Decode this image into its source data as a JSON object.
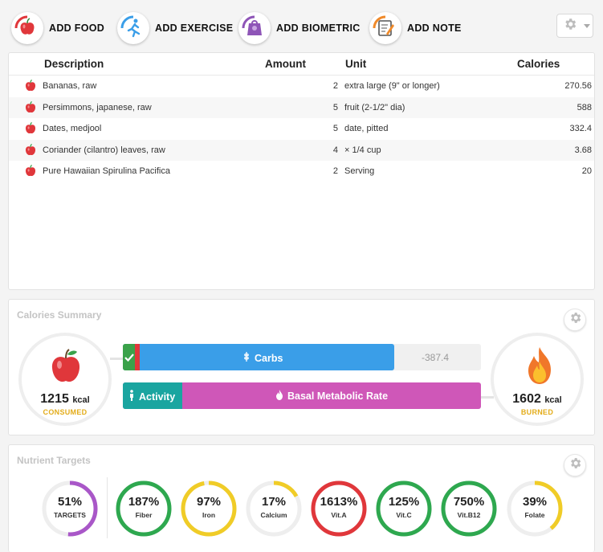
{
  "toolbar": {
    "add_food": "ADD FOOD",
    "add_exercise": "ADD EXERCISE",
    "add_biometric": "ADD BIOMETRIC",
    "add_note": "ADD NOTE"
  },
  "food_table": {
    "headers": {
      "description": "Description",
      "amount": "Amount",
      "unit": "Unit",
      "calories": "Calories"
    },
    "rows": [
      {
        "description": "Bananas, raw",
        "amount": "2",
        "unit": "extra large (9\" or longer)",
        "calories": "270.56"
      },
      {
        "description": "Persimmons, japanese, raw",
        "amount": "5",
        "unit": "fruit (2-1/2\" dia)",
        "calories": "588"
      },
      {
        "description": "Dates, medjool",
        "amount": "5",
        "unit": "date, pitted",
        "calories": "332.4"
      },
      {
        "description": "Coriander (cilantro) leaves, raw",
        "amount": "4",
        "unit": "× 1/4 cup",
        "calories": "3.68"
      },
      {
        "description": "Pure Hawaiian Spirulina Pacifica",
        "amount": "2",
        "unit": "Serving",
        "calories": "20"
      }
    ]
  },
  "calories_summary": {
    "title": "Calories Summary",
    "consumed_value": "1215",
    "consumed_unit": "kcal",
    "consumed_label": "CONSUMED",
    "burned_value": "1602",
    "burned_unit": "kcal",
    "burned_label": "BURNED",
    "carbs_label": "Carbs",
    "difference": "-387.4",
    "activity_label": "Activity",
    "bmr_label": "Basal Metabolic Rate",
    "consumed_fraction_of_burned": 0.758
  },
  "nutrient_targets": {
    "title": "Nutrient Targets",
    "items": [
      {
        "pct": "51%",
        "name": "TARGETS",
        "value": 51,
        "color": "#a957c8"
      },
      {
        "pct": "187%",
        "name": "Fiber",
        "value": 187,
        "color": "#2ea84f"
      },
      {
        "pct": "97%",
        "name": "Iron",
        "value": 97,
        "color": "#f0cc27"
      },
      {
        "pct": "17%",
        "name": "Calcium",
        "value": 17,
        "color": "#f0cc27"
      },
      {
        "pct": "1613%",
        "name": "Vit.A",
        "value": 1613,
        "color": "#e0373b"
      },
      {
        "pct": "125%",
        "name": "Vit.C",
        "value": 125,
        "color": "#2ea84f"
      },
      {
        "pct": "750%",
        "name": "Vit.B12",
        "value": 750,
        "color": "#2ea84f"
      },
      {
        "pct": "39%",
        "name": "Folate",
        "value": 39,
        "color": "#f0cc27"
      }
    ]
  },
  "colors": {
    "carbs_blue": "#3a9ee8",
    "bmr_pink": "#cf57b8",
    "activity_teal": "#1aa5a0",
    "accent_gold": "#e3ac1a"
  },
  "icons": [
    "apple-icon",
    "runner-icon",
    "scale-icon",
    "notepad-icon",
    "gear-icon",
    "flame-icon",
    "wheat-icon",
    "person-icon",
    "check-icon"
  ]
}
